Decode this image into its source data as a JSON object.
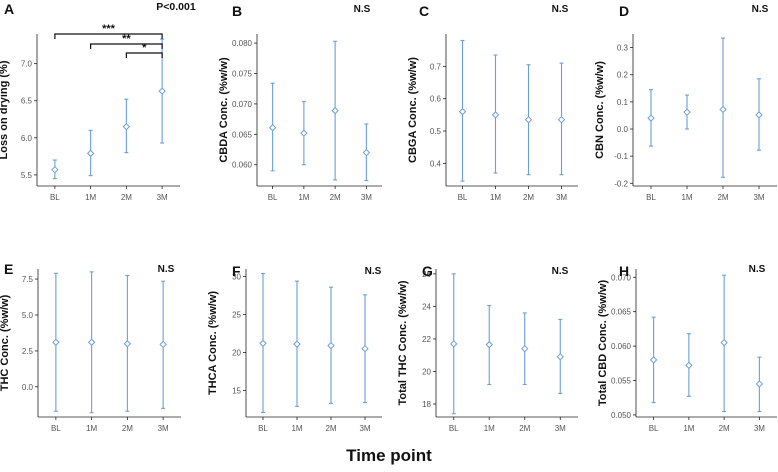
{
  "chart_data": [
    {
      "type": "errorbar",
      "panel": "A",
      "ylabel": "Loss on drying (%)",
      "categories": [
        "BL",
        "1M",
        "2M",
        "3M"
      ],
      "ylim": [
        5.35,
        7.4
      ],
      "yticks": [
        5.5,
        6.0,
        6.5,
        7.0
      ],
      "ytick_labels": [
        "5.5",
        "6.0",
        "6.5",
        "7.0"
      ],
      "mean": [
        5.57,
        5.79,
        6.15,
        6.63
      ],
      "lower": [
        5.45,
        5.49,
        5.8,
        5.93
      ],
      "upper": [
        5.7,
        6.1,
        6.52,
        7.33
      ],
      "annotation": "P<0.001",
      "brackets": [
        {
          "from": 0,
          "to": 3,
          "label": "***"
        },
        {
          "from": 1,
          "to": 3,
          "label": "**"
        },
        {
          "from": 2,
          "to": 3,
          "label": "*"
        }
      ]
    },
    {
      "type": "errorbar",
      "panel": "B",
      "ylabel": "CBDA Conc. (%w/w)",
      "categories": [
        "BL",
        "1M",
        "2M",
        "3M"
      ],
      "ylim": [
        0.0565,
        0.0815
      ],
      "yticks": [
        0.06,
        0.065,
        0.07,
        0.075,
        0.08
      ],
      "ytick_labels": [
        "0.060",
        "0.065",
        "0.070",
        "0.075",
        "0.080"
      ],
      "mean": [
        0.0661,
        0.0652,
        0.0689,
        0.062
      ],
      "lower": [
        0.059,
        0.06,
        0.0575,
        0.0574
      ],
      "upper": [
        0.0734,
        0.0704,
        0.0803,
        0.0667
      ],
      "annotation": "N.S"
    },
    {
      "type": "errorbar",
      "panel": "C",
      "ylabel": "CBGA Conc. (%w/w)",
      "categories": [
        "BL",
        "1M",
        "2M",
        "3M"
      ],
      "ylim": [
        0.33,
        0.8
      ],
      "yticks": [
        0.4,
        0.5,
        0.6,
        0.7
      ],
      "ytick_labels": [
        "0.4",
        "0.5",
        "0.6",
        "0.7"
      ],
      "mean": [
        0.56,
        0.55,
        0.535,
        0.535
      ],
      "lower": [
        0.345,
        0.37,
        0.365,
        0.365
      ],
      "upper": [
        0.78,
        0.735,
        0.705,
        0.71
      ],
      "annotation": "N.S"
    },
    {
      "type": "errorbar",
      "panel": "D",
      "ylabel": "CBN Conc. (%w/w)",
      "categories": [
        "BL",
        "1M",
        "2M",
        "3M"
      ],
      "ylim": [
        -0.21,
        0.35
      ],
      "yticks": [
        -0.2,
        -0.1,
        0.0,
        0.1,
        0.2,
        0.3
      ],
      "ytick_labels": [
        "-0.2",
        "-0.1",
        "0.0",
        "0.1",
        "0.2",
        "0.3"
      ],
      "mean": [
        0.04,
        0.062,
        0.072,
        0.052
      ],
      "lower": [
        -0.063,
        0.0,
        -0.178,
        -0.078
      ],
      "upper": [
        0.145,
        0.125,
        0.335,
        0.185
      ],
      "annotation": "N.S"
    },
    {
      "type": "errorbar",
      "panel": "E",
      "ylabel": "THC Conc. (%w/w)",
      "categories": [
        "BL",
        "1M",
        "2M",
        "3M"
      ],
      "ylim": [
        -2.1,
        8.2
      ],
      "yticks": [
        0.0,
        2.5,
        5.0,
        7.5
      ],
      "ytick_labels": [
        "0.0",
        "2.5",
        "5.0",
        "7.5"
      ],
      "mean": [
        3.1,
        3.1,
        3.0,
        2.95
      ],
      "lower": [
        -1.7,
        -1.8,
        -1.7,
        -1.5
      ],
      "upper": [
        7.9,
        8.0,
        7.75,
        7.35
      ],
      "annotation": "N.S"
    },
    {
      "type": "errorbar",
      "panel": "F",
      "ylabel": "THCA Conc. (%w/w)",
      "categories": [
        "BL",
        "1M",
        "2M",
        "3M"
      ],
      "ylim": [
        11.5,
        31
      ],
      "yticks": [
        15,
        20,
        25,
        30
      ],
      "ytick_labels": [
        "15",
        "20",
        "25",
        "30"
      ],
      "mean": [
        21.2,
        21.1,
        20.9,
        20.5
      ],
      "lower": [
        12.1,
        12.9,
        13.3,
        13.4
      ],
      "upper": [
        30.4,
        29.4,
        28.6,
        27.6
      ],
      "annotation": "N.S"
    },
    {
      "type": "errorbar",
      "panel": "G",
      "ylabel": "Total THC Conc. (%w/w)",
      "categories": [
        "BL",
        "1M",
        "2M",
        "3M"
      ],
      "ylim": [
        17.2,
        26.3
      ],
      "yticks": [
        18,
        20,
        22,
        24,
        26
      ],
      "ytick_labels": [
        "18",
        "20",
        "22",
        "24",
        "26"
      ],
      "mean": [
        21.7,
        21.65,
        21.4,
        20.9
      ],
      "lower": [
        17.4,
        19.2,
        19.2,
        18.65
      ],
      "upper": [
        26.0,
        24.05,
        23.6,
        23.2
      ],
      "annotation": "N.S"
    },
    {
      "type": "errorbar",
      "panel": "H",
      "ylabel": "Total CBD Conc. (%w/w)",
      "categories": [
        "BL",
        "1M",
        "2M",
        "3M"
      ],
      "ylim": [
        0.0497,
        0.0712
      ],
      "yticks": [
        0.05,
        0.055,
        0.06,
        0.065,
        0.07
      ],
      "ytick_labels": [
        "0.050",
        "0.055",
        "0.060",
        "0.065",
        "0.070"
      ],
      "mean": [
        0.058,
        0.0572,
        0.0605,
        0.0545
      ],
      "lower": [
        0.0518,
        0.0527,
        0.0505,
        0.0505
      ],
      "upper": [
        0.0642,
        0.0618,
        0.0703,
        0.0584
      ],
      "annotation": "N.S"
    }
  ],
  "xlabel": "Time point",
  "colors": {
    "errorbar": "#6b9fd9",
    "axis": "#222222",
    "tick_text": "#555555"
  }
}
